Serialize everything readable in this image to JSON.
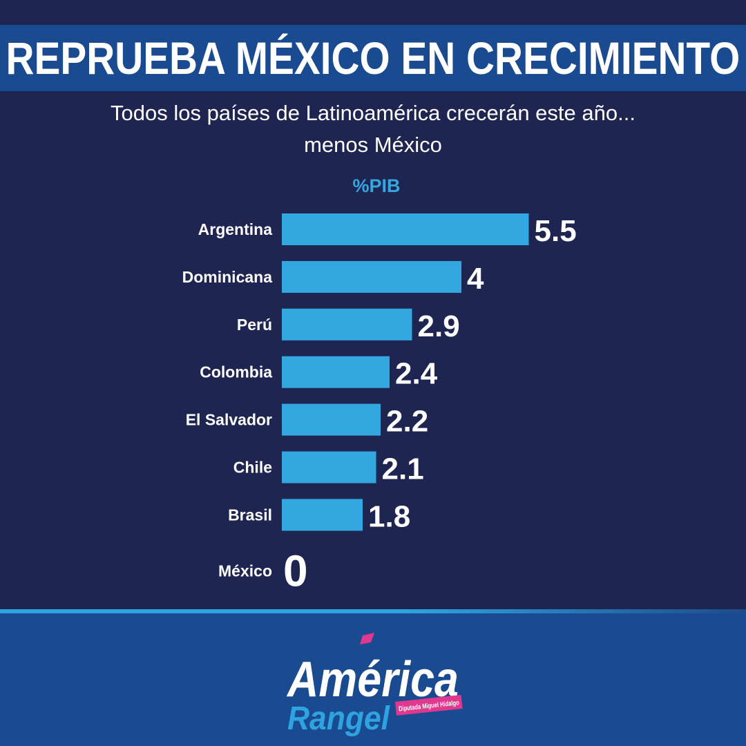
{
  "header": {
    "title": "REPRUEBA MÉXICO EN CRECIMIENTO",
    "subtitle_line1": "Todos los países de Latinoamérica crecerán este año...",
    "subtitle_line2": "menos México"
  },
  "chart_data": {
    "type": "bar",
    "orientation": "horizontal",
    "unit_label": "%PIB",
    "categories": [
      "Argentina",
      "Dominicana",
      "Perú",
      "Colombia",
      "El Salvador",
      "Chile",
      "Brasil",
      "México"
    ],
    "values": [
      5.5,
      4,
      2.9,
      2.4,
      2.2,
      2.1,
      1.8,
      0
    ],
    "value_labels": [
      "5.5",
      "4",
      "2.9",
      "2.4",
      "2.2",
      "2.1",
      "1.8",
      "0"
    ],
    "bar_color": "#33a8e0",
    "grid": false,
    "legend": "none"
  },
  "logo": {
    "name_line1": "América",
    "name_line2": "Rangel",
    "tag": "Diputada Miguel Hidalgo",
    "colors": {
      "white": "#ffffff",
      "blue": "#2fa3df",
      "pink": "#e0388f"
    }
  },
  "colors": {
    "background": "#1f2551",
    "title_bar": "#1a4a8f",
    "accent": "#33a8e0"
  }
}
